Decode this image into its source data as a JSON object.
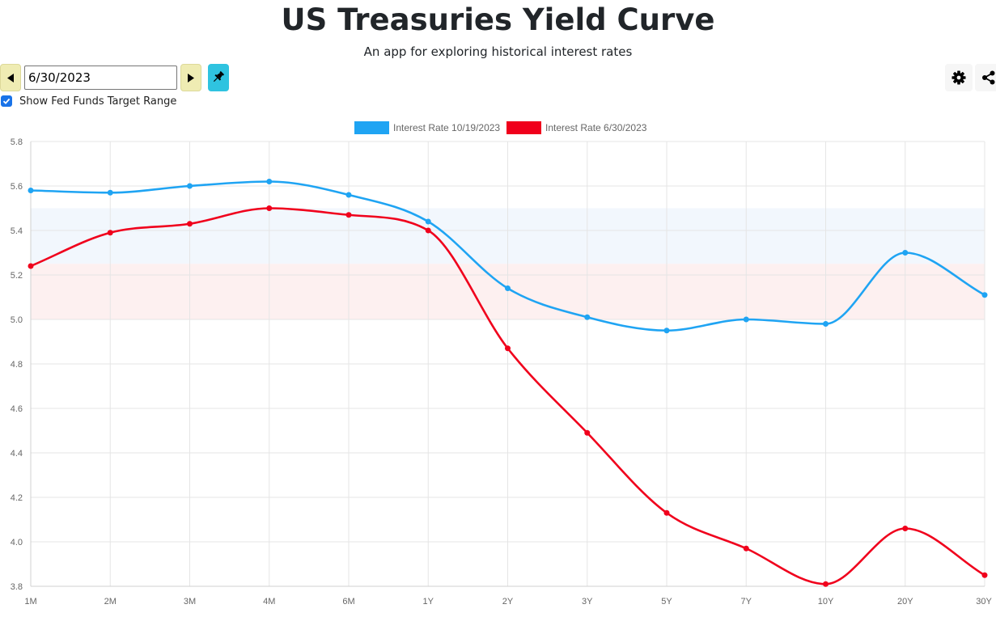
{
  "header": {
    "title": "US Treasuries Yield Curve",
    "subtitle": "An app for exploring historical interest rates"
  },
  "controls": {
    "date_value": "6/30/2023",
    "prev_icon": "caret-left-icon",
    "next_icon": "caret-right-icon",
    "pin_icon": "pin-icon",
    "settings_icon": "gear-icon",
    "share_icon": "share-icon",
    "fed_funds_checkbox_label": "Show Fed Funds Target Range",
    "fed_funds_checked": true
  },
  "chart_data": {
    "type": "line",
    "categories": [
      "1M",
      "2M",
      "3M",
      "4M",
      "6M",
      "1Y",
      "2Y",
      "3Y",
      "5Y",
      "7Y",
      "10Y",
      "20Y",
      "30Y"
    ],
    "series": [
      {
        "name": "Interest Rate 10/19/2023",
        "color": "#1fa4f3",
        "values": [
          5.58,
          5.57,
          5.6,
          5.62,
          5.56,
          5.44,
          5.14,
          5.01,
          4.95,
          5.0,
          4.98,
          5.3,
          5.11
        ]
      },
      {
        "name": "Interest Rate 6/30/2023",
        "color": "#f0001c",
        "values": [
          5.24,
          5.39,
          5.43,
          5.5,
          5.47,
          5.4,
          4.87,
          4.49,
          4.13,
          3.97,
          3.81,
          4.06,
          3.85
        ]
      }
    ],
    "fed_funds_bands": [
      {
        "low": 5.25,
        "high": 5.5,
        "color": "#f2f7fd"
      },
      {
        "low": 5.0,
        "high": 5.25,
        "color": "#fdf0f0"
      }
    ],
    "ylim": [
      3.8,
      5.8
    ],
    "yticks": [
      "5.8",
      "5.6",
      "5.4",
      "5.2",
      "5.0",
      "4.8",
      "4.6",
      "4.4",
      "4.2",
      "4.0",
      "3.8"
    ],
    "grid": true,
    "legend_position": "top-center"
  }
}
